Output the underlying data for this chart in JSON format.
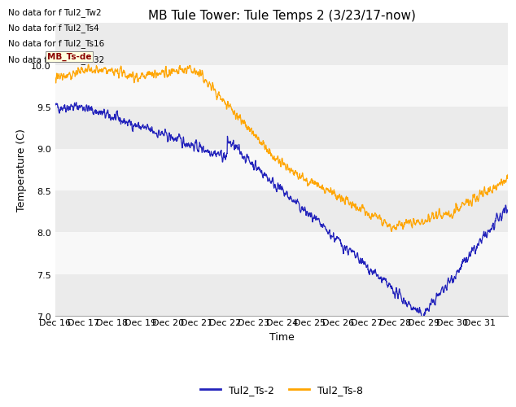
{
  "title": "MB Tule Tower: Tule Temps 2 (3/23/17-now)",
  "xlabel": "Time",
  "ylabel": "Temperature (C)",
  "ylim": [
    7.0,
    10.5
  ],
  "x_tick_labels": [
    "Dec 16",
    "Dec 17",
    "Dec 18",
    "Dec 19",
    "Dec 20",
    "Dec 21",
    "Dec 22",
    "Dec 23",
    "Dec 24",
    "Dec 25",
    "Dec 26",
    "Dec 27",
    "Dec 28",
    "Dec 29",
    "Dec 30",
    "Dec 31"
  ],
  "no_data_lines": [
    "No data for f Tul2_Tw2",
    "No data for f Tul2_Ts4",
    "No data for f Tul2_Ts16",
    "No data for f Tul2_Ts32"
  ],
  "tooltip_text": "MB_Ts-de",
  "legend_labels": [
    "Tul2_Ts-2",
    "Tul2_Ts-8"
  ],
  "line_colors": [
    "#2222bb",
    "#ffa500"
  ],
  "bg_color": "#ffffff",
  "band_colors": [
    "#ebebeb",
    "#f8f8f8"
  ],
  "title_fontsize": 11,
  "axis_label_fontsize": 9,
  "tick_fontsize": 8,
  "legend_fontsize": 9
}
